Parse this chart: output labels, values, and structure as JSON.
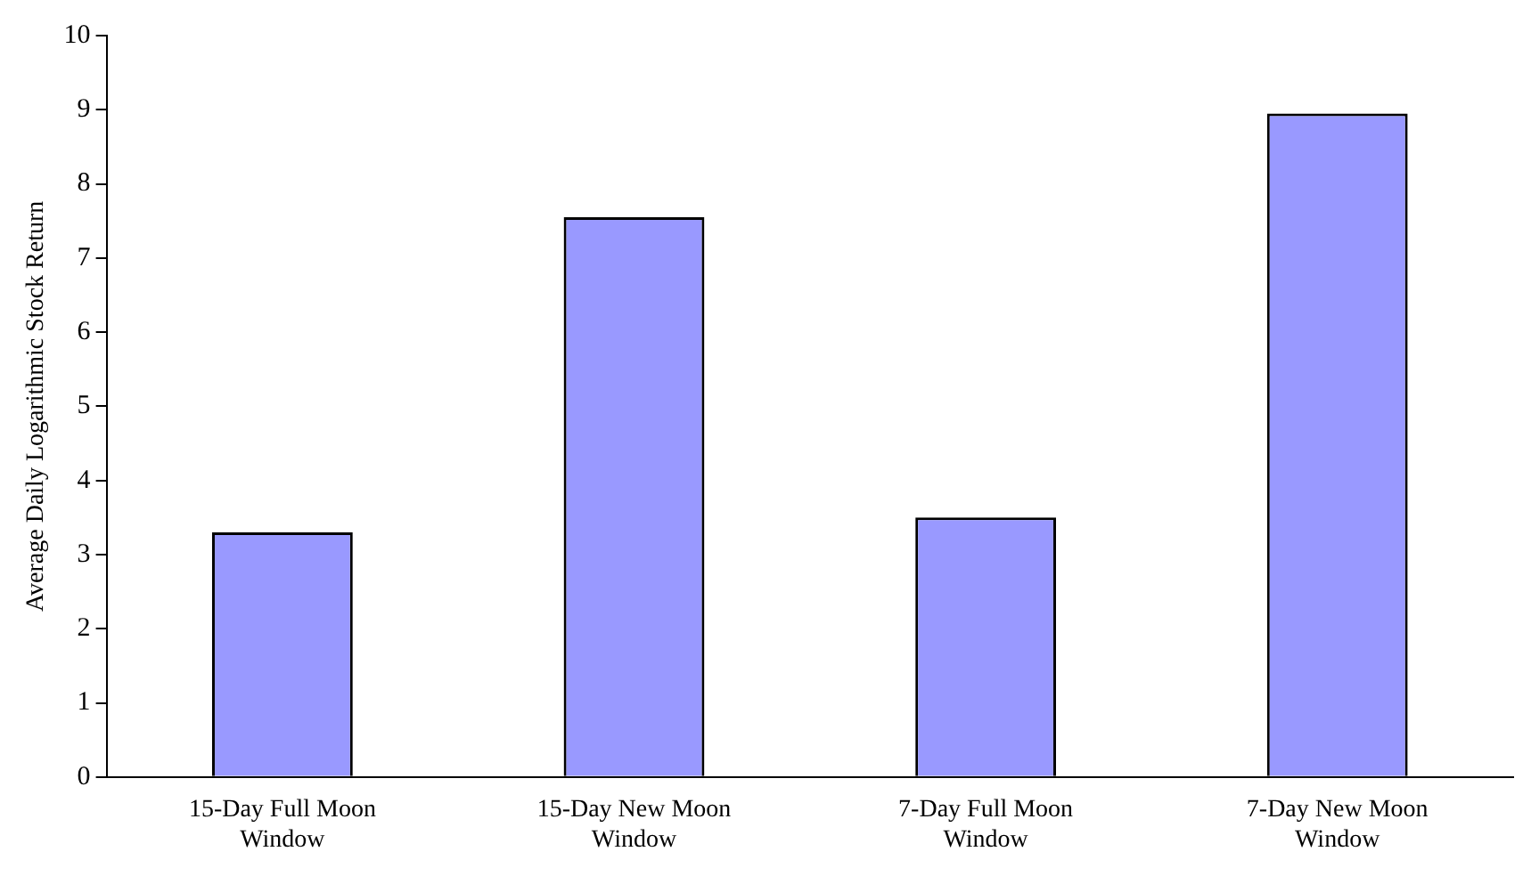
{
  "chart_data": {
    "type": "bar",
    "ylabel": "Average Daily Logarithmic Stock Return",
    "categories": [
      [
        "15-Day Full Moon",
        "Window"
      ],
      [
        "15-Day New Moon",
        "Window"
      ],
      [
        "7-Day Full Moon",
        "Window"
      ],
      [
        "7-Day New Moon",
        "Window"
      ]
    ],
    "values": [
      3.3,
      7.55,
      3.5,
      8.95
    ],
    "color": "#9999ff",
    "ylim": [
      0,
      10
    ],
    "yticks": [
      0,
      1,
      2,
      3,
      4,
      5,
      6,
      7,
      8,
      9,
      10
    ],
    "grid": false,
    "legend": false
  }
}
